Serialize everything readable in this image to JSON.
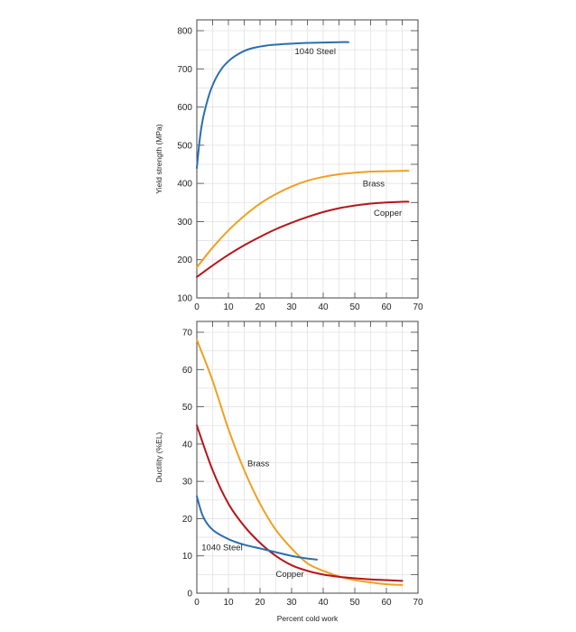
{
  "chart_data": [
    {
      "type": "line",
      "title": "",
      "xlabel": "",
      "ylabel": "Yield strength (MPa)",
      "xlim": [
        0,
        70
      ],
      "ylim": [
        100,
        800
      ],
      "x_ticks": [
        "0",
        "10",
        "20",
        "30",
        "40",
        "50",
        "60",
        "70"
      ],
      "y_ticks": [
        "100",
        "200",
        "300",
        "400",
        "500",
        "600",
        "700",
        "800"
      ],
      "grid": true,
      "series": [
        {
          "name": "1040 Steel",
          "color": "#2a6fae",
          "x": [
            0,
            1,
            2,
            4,
            6,
            8,
            10,
            12,
            15,
            18,
            22,
            26,
            30,
            35,
            40,
            45,
            48
          ],
          "y": [
            440,
            520,
            572,
            635,
            675,
            702,
            720,
            733,
            747,
            755,
            761,
            764,
            766,
            768,
            769,
            770,
            770
          ]
        },
        {
          "name": "Brass",
          "color": "#f0a020",
          "x": [
            0,
            5,
            10,
            15,
            20,
            25,
            30,
            35,
            40,
            45,
            50,
            55,
            60,
            65,
            67
          ],
          "y": [
            180,
            232,
            277,
            315,
            347,
            372,
            392,
            407,
            417,
            424,
            428,
            431,
            432,
            433,
            433
          ]
        },
        {
          "name": "Copper",
          "color": "#b5161b",
          "x": [
            0,
            5,
            10,
            15,
            20,
            25,
            30,
            35,
            40,
            45,
            50,
            55,
            60,
            65,
            67
          ],
          "y": [
            155,
            185,
            213,
            238,
            260,
            280,
            297,
            312,
            325,
            335,
            342,
            347,
            350,
            352,
            352
          ]
        }
      ]
    },
    {
      "type": "line",
      "title": "",
      "xlabel": "Percent cold work",
      "ylabel": "Ductility (%EL)",
      "xlim": [
        0,
        70
      ],
      "ylim": [
        0,
        70
      ],
      "x_ticks": [
        "0",
        "10",
        "20",
        "30",
        "40",
        "50",
        "60",
        "70"
      ],
      "y_ticks": [
        "0",
        "10",
        "20",
        "30",
        "40",
        "50",
        "60",
        "70"
      ],
      "grid": true,
      "series": [
        {
          "name": "Brass",
          "color": "#f0a020",
          "x": [
            0,
            5,
            10,
            15,
            20,
            25,
            30,
            35,
            40,
            45,
            50,
            55,
            60,
            65
          ],
          "y": [
            68,
            57,
            44,
            33,
            24,
            17,
            12,
            8,
            6,
            4.5,
            3.5,
            2.9,
            2.4,
            2.2
          ]
        },
        {
          "name": "Copper",
          "color": "#b5161b",
          "x": [
            0,
            5,
            10,
            15,
            20,
            25,
            30,
            35,
            40,
            45,
            50,
            55,
            60,
            65
          ],
          "y": [
            45,
            33,
            24,
            18,
            13.5,
            10,
            7.5,
            6,
            5,
            4.4,
            4,
            3.7,
            3.5,
            3.3
          ]
        },
        {
          "name": "1040 Steel",
          "color": "#2a6fae",
          "x": [
            0,
            2,
            5,
            10,
            15,
            20,
            25,
            30,
            35,
            38
          ],
          "y": [
            26,
            20.5,
            17,
            14.5,
            13,
            12,
            11,
            10,
            9.3,
            9
          ]
        }
      ],
      "annotations": [
        {
          "text": "Brass",
          "x": 16,
          "y": 34
        },
        {
          "text": "1040 Steel",
          "x": 1.5,
          "y": 11.5
        },
        {
          "text": "Copper",
          "x": 25,
          "y": 4.3
        }
      ]
    }
  ],
  "top_annotations": [
    {
      "text": "1040 Steel",
      "x": 31,
      "y": 738
    },
    {
      "text": "Brass",
      "x": 52.5,
      "y": 392
    },
    {
      "text": "Copper",
      "x": 56,
      "y": 315
    }
  ]
}
